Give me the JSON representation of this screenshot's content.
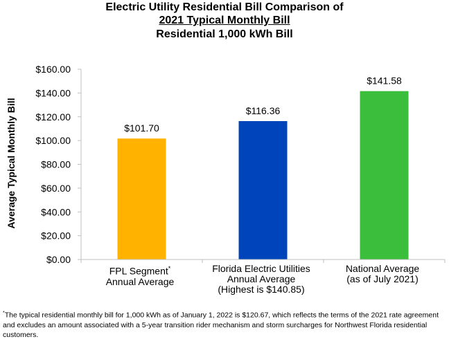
{
  "title": {
    "line1": "Electric Utility Residential Bill Comparison of",
    "line2": "2021 Typical Monthly Bill",
    "line3": "Residential 1,000 kWh Bill"
  },
  "chart_data": {
    "type": "bar",
    "ylabel": "Average Typical Monthly Bill",
    "xlabel": "",
    "ylim": [
      0,
      160
    ],
    "yticks": [
      "$0.00",
      "$20.00",
      "$40.00",
      "$60.00",
      "$80.00",
      "$100.00",
      "$120.00",
      "$140.00",
      "$160.00"
    ],
    "grid": false,
    "categories": [
      {
        "line1": "FPL Segment",
        "marker": "*",
        "line2": "Annual Average",
        "line3": ""
      },
      {
        "line1": "Florida Electric Utilities",
        "marker": "",
        "line2": "Annual Average",
        "line3": "(Highest is $140.85)"
      },
      {
        "line1": "National Average",
        "marker": "",
        "line2": "(as of July 2021)",
        "line3": ""
      }
    ],
    "values": [
      101.7,
      116.36,
      141.58
    ],
    "value_labels": [
      "$101.70",
      "$116.36",
      "$141.58"
    ],
    "colors": [
      "#FFB300",
      "#0044BB",
      "#3BBE3B"
    ]
  },
  "footnote": {
    "marker": "*",
    "text": "The typical residential monthly bill for 1,000 kWh as of January 1, 2022 is $120.67, which reflects the terms of the 2021 rate agreement and excludes an amount associated with a 5-year transition rider mechanism and storm surcharges for Northwest Florida residential customers."
  }
}
